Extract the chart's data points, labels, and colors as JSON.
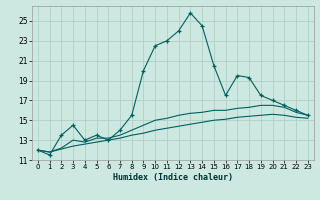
{
  "xlabel": "Humidex (Indice chaleur)",
  "bg_color": "#cce8e0",
  "grid_color": "#b0d0c8",
  "line_color": "#006060",
  "xlim": [
    -0.5,
    23.5
  ],
  "ylim": [
    11,
    26.5
  ],
  "xticks": [
    0,
    1,
    2,
    3,
    4,
    5,
    6,
    7,
    8,
    9,
    10,
    11,
    12,
    13,
    14,
    15,
    16,
    17,
    18,
    19,
    20,
    21,
    22,
    23
  ],
  "yticks": [
    11,
    13,
    15,
    17,
    19,
    21,
    23,
    25
  ],
  "series1_x": [
    0,
    1,
    2,
    3,
    4,
    5,
    6,
    7,
    8,
    9,
    10,
    11,
    12,
    13,
    14,
    15,
    16,
    17,
    18,
    19,
    20,
    21,
    22,
    23
  ],
  "series1_y": [
    12.0,
    11.5,
    13.5,
    14.5,
    13.0,
    13.5,
    13.0,
    14.0,
    15.5,
    20.0,
    22.5,
    23.0,
    24.0,
    25.8,
    24.5,
    20.5,
    17.5,
    19.5,
    19.3,
    17.5,
    17.0,
    16.5,
    16.0,
    15.5
  ],
  "series2_x": [
    0,
    1,
    2,
    3,
    4,
    5,
    6,
    7,
    8,
    9,
    10,
    11,
    12,
    13,
    14,
    15,
    16,
    17,
    18,
    19,
    20,
    21,
    22,
    23
  ],
  "series2_y": [
    12.0,
    11.8,
    12.2,
    13.0,
    12.8,
    13.2,
    13.2,
    13.5,
    14.0,
    14.5,
    15.0,
    15.2,
    15.5,
    15.7,
    15.8,
    16.0,
    16.0,
    16.2,
    16.3,
    16.5,
    16.5,
    16.3,
    15.8,
    15.5
  ],
  "series3_x": [
    0,
    1,
    2,
    3,
    4,
    5,
    6,
    7,
    8,
    9,
    10,
    11,
    12,
    13,
    14,
    15,
    16,
    17,
    18,
    19,
    20,
    21,
    22,
    23
  ],
  "series3_y": [
    12.0,
    11.8,
    12.1,
    12.4,
    12.6,
    12.8,
    13.0,
    13.2,
    13.5,
    13.7,
    14.0,
    14.2,
    14.4,
    14.6,
    14.8,
    15.0,
    15.1,
    15.3,
    15.4,
    15.5,
    15.6,
    15.5,
    15.3,
    15.2
  ]
}
